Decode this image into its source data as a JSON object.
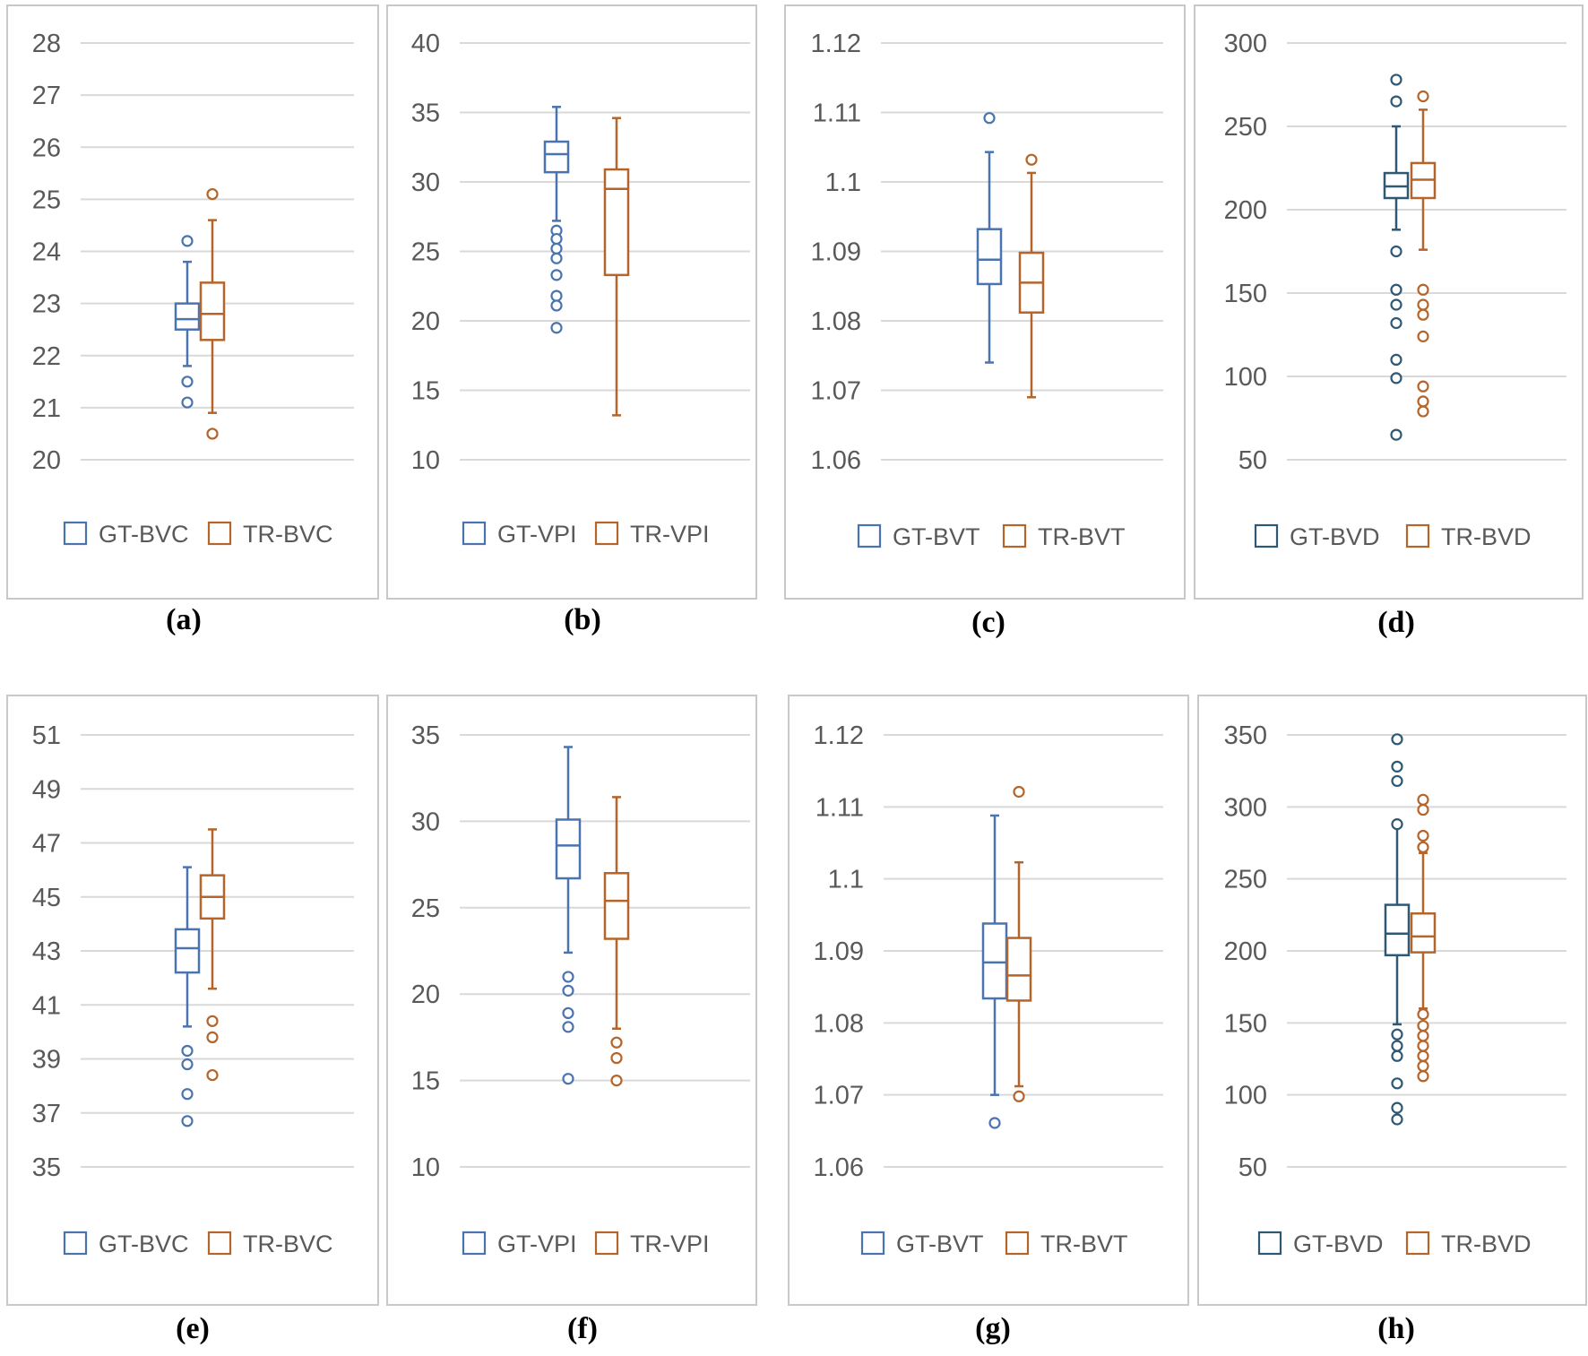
{
  "colors": {
    "gt_blue": "#4a74b0",
    "gt_dark": "#2e5874",
    "tr_orange": "#b5652a",
    "gridline": "#d9d9d9",
    "panel_border": "#c8c8c8",
    "tick_text": "#595959"
  },
  "chart_data": [
    {
      "type": "box",
      "caption": "(a)",
      "yticks": [
        "20",
        "21",
        "22",
        "23",
        "24",
        "25",
        "26",
        "27",
        "28"
      ],
      "ylim": [
        20,
        28
      ],
      "grid": true,
      "legend_position": "bottom",
      "series": [
        {
          "name": "GT-BVC",
          "color": "gt_blue",
          "min": 21.8,
          "q1": 22.5,
          "median": 22.7,
          "q3": 23.0,
          "max": 23.8,
          "outliers": [
            24.2,
            21.5,
            21.1
          ]
        },
        {
          "name": "TR-BVC",
          "color": "tr_orange",
          "min": 20.9,
          "q1": 22.3,
          "median": 22.8,
          "q3": 23.4,
          "max": 24.6,
          "outliers": [
            25.1,
            20.5
          ]
        }
      ]
    },
    {
      "type": "box",
      "caption": "(b)",
      "yticks": [
        "10",
        "15",
        "20",
        "25",
        "30",
        "35",
        "40"
      ],
      "ylim": [
        10,
        40
      ],
      "grid": true,
      "legend_position": "bottom",
      "series": [
        {
          "name": "GT-VPI",
          "color": "gt_blue",
          "min": 27.2,
          "q1": 30.7,
          "median": 32.0,
          "q3": 32.9,
          "max": 35.4,
          "outliers": [
            26.5,
            25.9,
            25.2,
            24.5,
            23.3,
            21.8,
            21.1,
            19.5
          ]
        },
        {
          "name": "TR-VPI",
          "color": "tr_orange",
          "min": 13.2,
          "q1": 23.3,
          "median": 29.5,
          "q3": 30.9,
          "max": 34.6,
          "outliers": []
        }
      ]
    },
    {
      "type": "box",
      "caption": "(c)",
      "yticks": [
        "1.06",
        "1.07",
        "1.08",
        "1.09",
        "1.1",
        "1.11",
        "1.12"
      ],
      "ylim": [
        1.06,
        1.12
      ],
      "grid": true,
      "legend_position": "bottom",
      "series": [
        {
          "name": "GT-BVT",
          "color": "gt_blue",
          "min": 1.074,
          "q1": 1.0853,
          "median": 1.0888,
          "q3": 1.0932,
          "max": 1.1043,
          "outliers": [
            1.1092
          ]
        },
        {
          "name": "TR-BVT",
          "color": "tr_orange",
          "min": 1.069,
          "q1": 1.0812,
          "median": 1.0855,
          "q3": 1.0898,
          "max": 1.1013,
          "outliers": [
            1.1032
          ]
        }
      ]
    },
    {
      "type": "box",
      "caption": "(d)",
      "yticks": [
        "50",
        "100",
        "150",
        "200",
        "250",
        "300"
      ],
      "ylim": [
        50,
        300
      ],
      "grid": true,
      "legend_position": "bottom",
      "series": [
        {
          "name": "GT-BVD",
          "color": "gt_dark",
          "min": 188,
          "q1": 207,
          "median": 214,
          "q3": 222,
          "max": 250,
          "outliers": [
            278,
            265,
            175,
            152,
            143,
            132,
            110,
            99,
            65
          ]
        },
        {
          "name": "TR-BVD",
          "color": "tr_orange",
          "min": 176,
          "q1": 207,
          "median": 218,
          "q3": 228,
          "max": 260,
          "outliers": [
            268,
            152,
            143,
            137,
            124,
            94,
            85,
            79
          ]
        }
      ]
    },
    {
      "type": "box",
      "caption": "(e)",
      "yticks": [
        "35",
        "37",
        "39",
        "41",
        "43",
        "45",
        "47",
        "49",
        "51"
      ],
      "ylim": [
        35,
        51
      ],
      "grid": true,
      "legend_position": "bottom",
      "series": [
        {
          "name": "GT-BVC",
          "color": "gt_blue",
          "min": 40.2,
          "q1": 42.2,
          "median": 43.1,
          "q3": 43.8,
          "max": 46.1,
          "outliers": [
            39.3,
            38.8,
            37.7,
            36.7
          ]
        },
        {
          "name": "TR-BVC",
          "color": "tr_orange",
          "min": 41.6,
          "q1": 44.2,
          "median": 45.0,
          "q3": 45.8,
          "max": 47.5,
          "outliers": [
            40.4,
            39.8,
            38.4
          ]
        }
      ]
    },
    {
      "type": "box",
      "caption": "(f)",
      "yticks": [
        "10",
        "15",
        "20",
        "25",
        "30",
        "35"
      ],
      "ylim": [
        10,
        35
      ],
      "grid": true,
      "legend_position": "bottom",
      "series": [
        {
          "name": "GT-VPI",
          "color": "gt_blue",
          "min": 22.4,
          "q1": 26.7,
          "median": 28.6,
          "q3": 30.1,
          "max": 34.3,
          "outliers": [
            21.0,
            20.2,
            18.9,
            18.1,
            15.1
          ]
        },
        {
          "name": "TR-VPI",
          "color": "tr_orange",
          "min": 18.0,
          "q1": 23.2,
          "median": 25.4,
          "q3": 27.0,
          "max": 31.4,
          "outliers": [
            17.2,
            16.3,
            15.0
          ]
        }
      ]
    },
    {
      "type": "box",
      "caption": "(g)",
      "yticks": [
        "1.06",
        "1.07",
        "1.08",
        "1.09",
        "1.1",
        "1.11",
        "1.12"
      ],
      "ylim": [
        1.06,
        1.12
      ],
      "grid": true,
      "legend_position": "bottom",
      "series": [
        {
          "name": "GT-BVT",
          "color": "gt_blue",
          "min": 1.07,
          "q1": 1.0834,
          "median": 1.0884,
          "q3": 1.0938,
          "max": 1.1088,
          "outliers": [
            1.0661
          ]
        },
        {
          "name": "TR-BVT",
          "color": "tr_orange",
          "min": 1.0712,
          "q1": 1.0831,
          "median": 1.0866,
          "q3": 1.0918,
          "max": 1.1023,
          "outliers": [
            1.1121,
            1.0698
          ]
        }
      ]
    },
    {
      "type": "box",
      "caption": "(h)",
      "yticks": [
        "50",
        "100",
        "150",
        "200",
        "250",
        "300",
        "350"
      ],
      "ylim": [
        50,
        350
      ],
      "grid": true,
      "legend_position": "bottom",
      "series": [
        {
          "name": "GT-BVD",
          "color": "gt_dark",
          "min": 149,
          "q1": 197,
          "median": 212,
          "q3": 232,
          "max": 287,
          "outliers": [
            347,
            328,
            318,
            288,
            142,
            134,
            127,
            108,
            91,
            83
          ]
        },
        {
          "name": "TR-BVD",
          "color": "tr_orange",
          "min": 160,
          "q1": 199,
          "median": 210,
          "q3": 226,
          "max": 268,
          "outliers": [
            305,
            298,
            280,
            272,
            156,
            148,
            141,
            134,
            127,
            120,
            113
          ]
        }
      ]
    }
  ]
}
